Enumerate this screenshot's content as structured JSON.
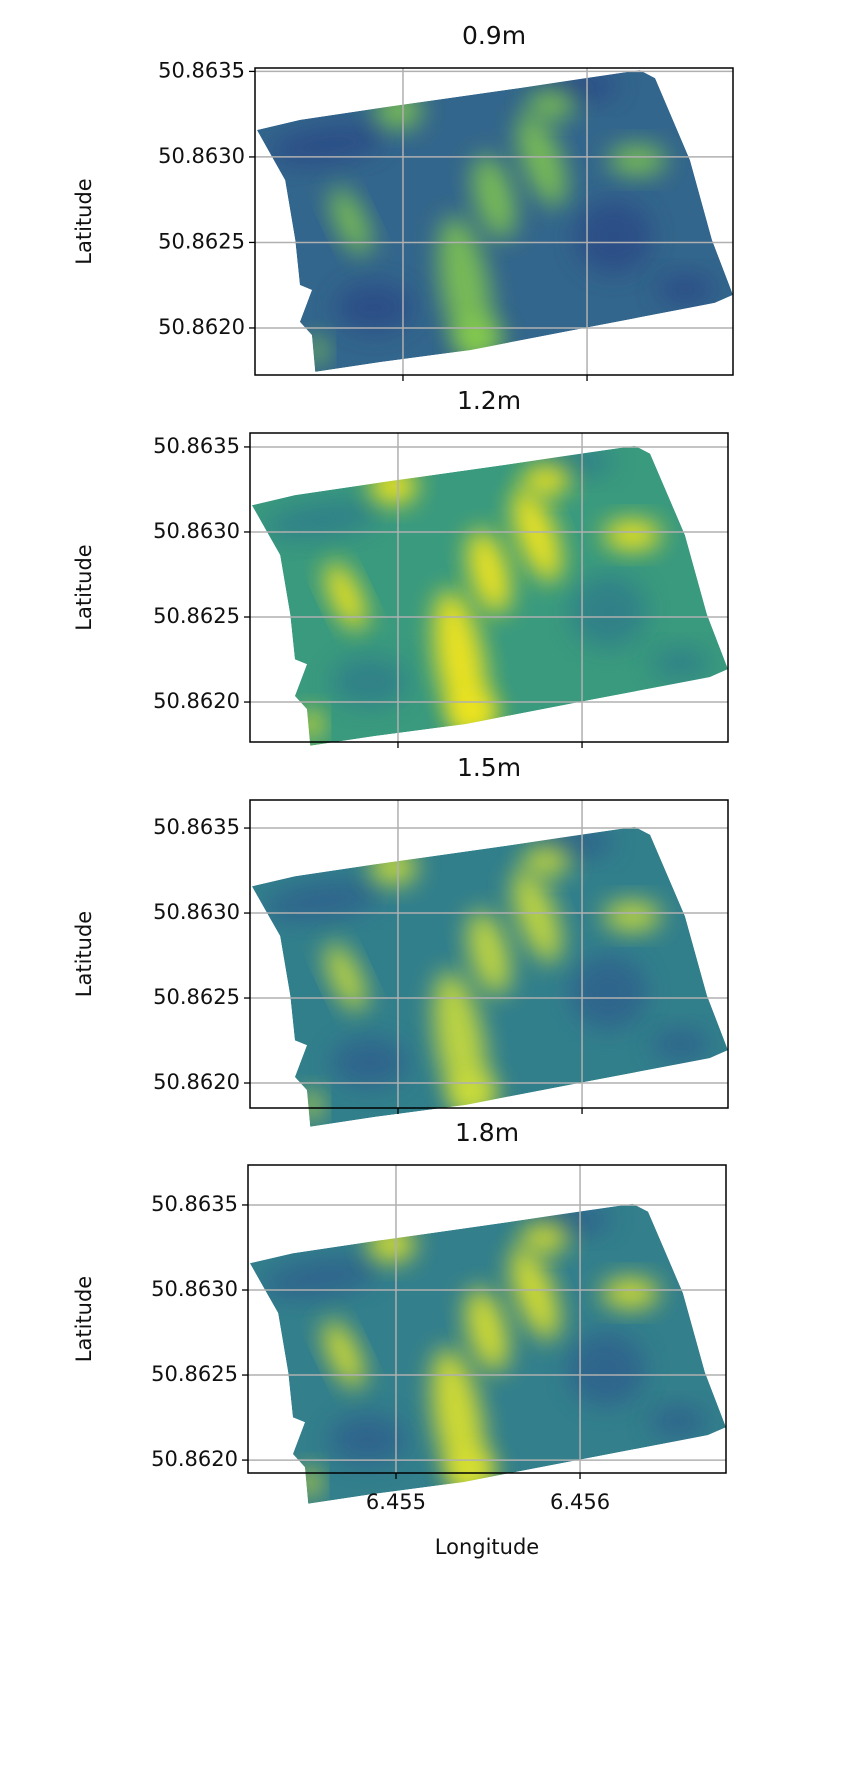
{
  "chart_data": [
    {
      "type": "map",
      "title": "0.9m",
      "ylabel": "Latitude",
      "xlim": [
        6.454196,
        6.456793
      ],
      "ylim": [
        50.861725,
        50.86352
      ],
      "xticks": [
        6.455,
        6.456
      ],
      "yticks": [
        {
          "value": 50.862,
          "label": "50.8620"
        },
        50.8625,
        {
          "value": 50.863,
          "label": "50.8630"
        },
        50.8635
      ],
      "grid": true
    },
    {
      "type": "map",
      "title": "1.2m",
      "ylabel": "Latitude",
      "xlim": [
        6.454196,
        6.456793
      ],
      "ylim": [
        50.861765,
        50.863582
      ],
      "xticks": [
        6.455,
        6.456
      ],
      "yticks": [
        {
          "value": 50.862,
          "label": "50.8620"
        },
        50.8625,
        {
          "value": 50.863,
          "label": "50.8630"
        },
        50.8635
      ],
      "grid": true
    },
    {
      "type": "map",
      "title": "1.5m",
      "ylabel": "Latitude",
      "xlim": [
        6.454196,
        6.456793
      ],
      "ylim": [
        50.861853,
        50.863665
      ],
      "xticks": [
        6.455,
        6.456
      ],
      "yticks": [
        {
          "value": 50.862,
          "label": "50.8620"
        },
        50.8625,
        {
          "value": 50.863,
          "label": "50.8630"
        },
        50.8635
      ],
      "grid": true
    },
    {
      "type": "map",
      "title": "1.8m",
      "ylabel": "Latitude",
      "xlabel": "Longitude",
      "xlim": [
        6.454196,
        6.456793
      ],
      "ylim": [
        50.861924,
        50.863735
      ],
      "xticks": [
        6.455,
        6.456
      ],
      "yticks": [
        {
          "value": 50.862,
          "label": "50.8620"
        },
        50.8625,
        {
          "value": 50.863,
          "label": "50.8630"
        },
        50.8635
      ],
      "grid": true
    }
  ]
}
